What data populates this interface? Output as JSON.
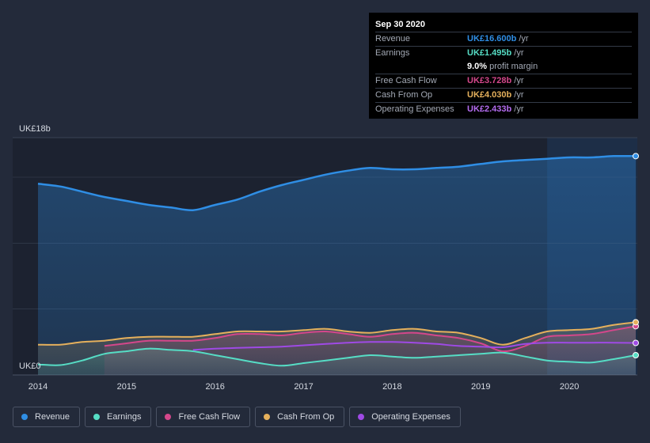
{
  "chart_data": {
    "type": "area",
    "currency_unit": "UK£",
    "y_axis": {
      "top_label": "UK£18b",
      "bottom_label": "UK£0",
      "ylim": [
        0,
        18
      ]
    },
    "x_axis": {
      "ticks": [
        "2014",
        "2015",
        "2016",
        "2017",
        "2018",
        "2019",
        "2020"
      ],
      "xlim": [
        2014.0,
        2020.75
      ]
    },
    "forecast_shade_start": 2019.75,
    "series": [
      {
        "name": "Revenue",
        "color": "#2f8ee5",
        "fill": true,
        "x": [
          2014.0,
          2014.25,
          2014.5,
          2014.75,
          2015.0,
          2015.25,
          2015.5,
          2015.75,
          2016.0,
          2016.25,
          2016.5,
          2016.75,
          2017.0,
          2017.25,
          2017.5,
          2017.75,
          2018.0,
          2018.25,
          2018.5,
          2018.75,
          2019.0,
          2019.25,
          2019.5,
          2019.75,
          2020.0,
          2020.25,
          2020.5,
          2020.75
        ],
        "values": [
          14.5,
          14.3,
          13.9,
          13.5,
          13.2,
          12.9,
          12.7,
          12.5,
          12.9,
          13.3,
          13.9,
          14.4,
          14.8,
          15.2,
          15.5,
          15.7,
          15.6,
          15.6,
          15.7,
          15.8,
          16.0,
          16.2,
          16.3,
          16.4,
          16.5,
          16.5,
          16.6,
          16.6
        ]
      },
      {
        "name": "Earnings",
        "color": "#56ddc5",
        "fill": true,
        "x": [
          2014.0,
          2014.25,
          2014.5,
          2014.75,
          2015.0,
          2015.25,
          2015.5,
          2015.75,
          2016.0,
          2016.25,
          2016.5,
          2016.75,
          2017.0,
          2017.25,
          2017.5,
          2017.75,
          2018.0,
          2018.25,
          2018.5,
          2018.75,
          2019.0,
          2019.25,
          2019.5,
          2019.75,
          2020.0,
          2020.25,
          2020.5,
          2020.75
        ],
        "values": [
          0.8,
          0.75,
          1.1,
          1.6,
          1.8,
          2.0,
          1.9,
          1.8,
          1.5,
          1.2,
          0.9,
          0.7,
          0.9,
          1.1,
          1.3,
          1.5,
          1.4,
          1.3,
          1.4,
          1.5,
          1.6,
          1.7,
          1.4,
          1.1,
          1.0,
          0.95,
          1.2,
          1.5
        ]
      },
      {
        "name": "Free Cash Flow",
        "color": "#d4478b",
        "fill": true,
        "x": [
          2014.75,
          2015.0,
          2015.25,
          2015.5,
          2015.75,
          2016.0,
          2016.25,
          2016.5,
          2016.75,
          2017.0,
          2017.25,
          2017.5,
          2017.75,
          2018.0,
          2018.25,
          2018.5,
          2018.75,
          2019.0,
          2019.25,
          2019.5,
          2019.75,
          2020.0,
          2020.25,
          2020.5,
          2020.75
        ],
        "values": [
          2.2,
          2.4,
          2.6,
          2.6,
          2.6,
          2.8,
          3.1,
          3.1,
          3.0,
          3.2,
          3.3,
          3.1,
          2.9,
          3.1,
          3.2,
          3.0,
          2.8,
          2.4,
          1.8,
          2.2,
          2.9,
          3.0,
          3.1,
          3.4,
          3.7
        ]
      },
      {
        "name": "Cash From Op",
        "color": "#e5b05c",
        "fill": true,
        "x": [
          2014.0,
          2014.25,
          2014.5,
          2014.75,
          2015.0,
          2015.25,
          2015.5,
          2015.75,
          2016.0,
          2016.25,
          2016.5,
          2016.75,
          2017.0,
          2017.25,
          2017.5,
          2017.75,
          2018.0,
          2018.25,
          2018.5,
          2018.75,
          2019.0,
          2019.25,
          2019.5,
          2019.75,
          2020.0,
          2020.25,
          2020.5,
          2020.75
        ],
        "values": [
          2.3,
          2.3,
          2.5,
          2.6,
          2.8,
          2.9,
          2.9,
          2.9,
          3.1,
          3.3,
          3.3,
          3.3,
          3.4,
          3.5,
          3.3,
          3.2,
          3.4,
          3.5,
          3.3,
          3.2,
          2.8,
          2.3,
          2.8,
          3.3,
          3.4,
          3.5,
          3.8,
          4.0
        ]
      },
      {
        "name": "Operating Expenses",
        "color": "#9f4ae5",
        "fill": false,
        "x": [
          2015.75,
          2016.0,
          2016.25,
          2016.5,
          2016.75,
          2017.0,
          2017.25,
          2017.5,
          2017.75,
          2018.0,
          2018.25,
          2018.5,
          2018.75,
          2019.0,
          2019.25,
          2019.5,
          2019.75,
          2020.0,
          2020.25,
          2020.5,
          2020.75
        ],
        "values": [
          1.9,
          2.0,
          2.05,
          2.1,
          2.15,
          2.25,
          2.35,
          2.45,
          2.5,
          2.5,
          2.45,
          2.35,
          2.2,
          2.15,
          2.1,
          2.35,
          2.45,
          2.45,
          2.45,
          2.45,
          2.43
        ]
      }
    ]
  },
  "tooltip": {
    "date": "Sep 30 2020",
    "rows": [
      {
        "label": "Revenue",
        "value": "UK£16.600b",
        "unit": "/yr",
        "color": "#2f8ee5"
      },
      {
        "label": "Earnings",
        "value": "UK£1.495b",
        "unit": "/yr",
        "color": "#56ddc5"
      },
      {
        "label": "Free Cash Flow",
        "value": "UK£3.728b",
        "unit": "/yr",
        "color": "#d4478b"
      },
      {
        "label": "Cash From Op",
        "value": "UK£4.030b",
        "unit": "/yr",
        "color": "#e5b05c"
      },
      {
        "label": "Operating Expenses",
        "value": "UK£2.433b",
        "unit": "/yr",
        "color": "#9f4ae5"
      }
    ],
    "margin_value": "9.0%",
    "margin_label": "profit margin"
  },
  "legend": [
    {
      "label": "Revenue",
      "color": "#2f8ee5"
    },
    {
      "label": "Earnings",
      "color": "#56ddc5"
    },
    {
      "label": "Free Cash Flow",
      "color": "#d4478b"
    },
    {
      "label": "Cash From Op",
      "color": "#e5b05c"
    },
    {
      "label": "Operating Expenses",
      "color": "#9f4ae5"
    }
  ]
}
